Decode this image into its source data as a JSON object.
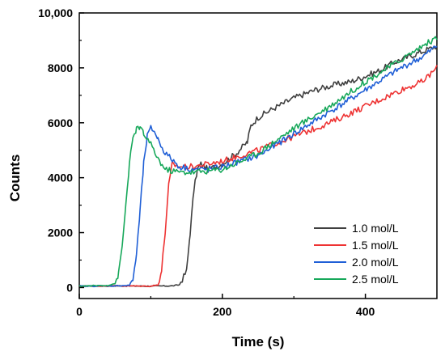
{
  "chart_data": {
    "type": "line",
    "title": "",
    "xlabel": "Time (s)",
    "ylabel": "Counts",
    "xlim": [
      0,
      500
    ],
    "ylim": [
      -400,
      10000
    ],
    "xticks": [
      0,
      200,
      400
    ],
    "xtick_labels": [
      "0",
      "200",
      "400"
    ],
    "yticks": [
      0,
      2000,
      4000,
      6000,
      8000,
      10000
    ],
    "ytick_labels": [
      "0",
      "2000",
      "4000",
      "6000",
      "8000",
      "10,000"
    ],
    "grid": false,
    "legend_position": "bottom-right",
    "series": [
      {
        "name": "1.0 mol/L",
        "color": "#404040",
        "x": [
          0,
          50,
          100,
          130,
          140,
          150,
          155,
          160,
          165,
          170,
          180,
          200,
          220,
          235,
          240,
          250,
          270,
          300,
          330,
          360,
          380,
          400,
          420,
          440,
          460,
          480,
          500
        ],
        "y": [
          50,
          60,
          50,
          60,
          100,
          600,
          2000,
          3500,
          4300,
          4500,
          4300,
          4500,
          4900,
          5300,
          5900,
          6200,
          6500,
          6900,
          7200,
          7400,
          7500,
          7700,
          7900,
          8200,
          8400,
          8600,
          8800
        ]
      },
      {
        "name": "1.5 mol/L",
        "color": "#ee3333",
        "x": [
          0,
          50,
          100,
          110,
          115,
          120,
          125,
          130,
          140,
          160,
          180,
          200,
          250,
          300,
          350,
          400,
          450,
          480,
          500
        ],
        "y": [
          50,
          60,
          50,
          100,
          600,
          2000,
          3700,
          4500,
          4400,
          4400,
          4500,
          4600,
          5000,
          5500,
          6000,
          6600,
          7200,
          7500,
          8000
        ]
      },
      {
        "name": "2.0 mol/L",
        "color": "#1f5fd6",
        "x": [
          0,
          50,
          70,
          75,
          80,
          85,
          90,
          95,
          100,
          105,
          110,
          120,
          140,
          160,
          180,
          200,
          250,
          300,
          350,
          400,
          450,
          480,
          500
        ],
        "y": [
          50,
          60,
          80,
          300,
          1200,
          2800,
          4500,
          5500,
          5800,
          5700,
          5400,
          4900,
          4400,
          4300,
          4300,
          4400,
          4800,
          5600,
          6400,
          7200,
          8000,
          8400,
          8800
        ]
      },
      {
        "name": "2.5 mol/L",
        "color": "#17a85a",
        "x": [
          0,
          40,
          50,
          55,
          60,
          65,
          70,
          75,
          80,
          85,
          90,
          100,
          110,
          120,
          140,
          160,
          200,
          250,
          300,
          350,
          400,
          450,
          480,
          500
        ],
        "y": [
          50,
          80,
          150,
          500,
          1500,
          3000,
          4500,
          5400,
          5800,
          5800,
          5600,
          5200,
          4700,
          4300,
          4200,
          4200,
          4300,
          4900,
          5800,
          6600,
          7500,
          8300,
          8800,
          9100
        ]
      }
    ]
  }
}
